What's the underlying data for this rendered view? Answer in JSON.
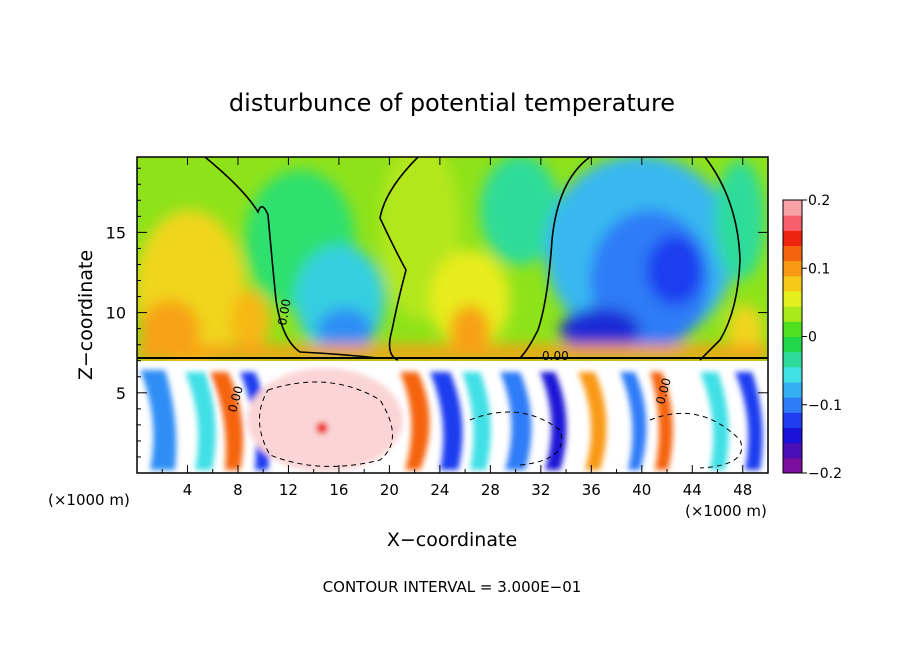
{
  "chart_data": {
    "type": "heatmap",
    "title": "disturbunce of potential temperature",
    "xlabel": "X−coordinate",
    "ylabel": "Z−coordinate",
    "x_unit_left": "(×1000 m)",
    "x_unit_right": "(×1000 m)",
    "x_ticks": [
      "4",
      "8",
      "12",
      "16",
      "20",
      "24",
      "28",
      "32",
      "36",
      "40",
      "44",
      "48"
    ],
    "x_tick_values": [
      4,
      8,
      12,
      16,
      20,
      24,
      28,
      32,
      36,
      40,
      44,
      48
    ],
    "y_ticks": [
      "5",
      "10",
      "15"
    ],
    "y_tick_values": [
      5,
      10,
      15
    ],
    "xlim": [
      0,
      50
    ],
    "ylim": [
      0,
      19.7
    ],
    "colorbar": {
      "ticks": [
        "0.2",
        "0.1",
        "0",
        "−0.1",
        "−0.2"
      ],
      "tick_values": [
        0.2,
        0.1,
        0,
        -0.1,
        -0.2
      ],
      "range": [
        -0.2,
        0.2
      ],
      "colors": [
        "#7b0e9c",
        "#4b0db5",
        "#1a12d6",
        "#1f3cf0",
        "#2f7cf7",
        "#35aef3",
        "#3fe0e6",
        "#2ddc9a",
        "#21d64a",
        "#4fe020",
        "#a8ea1c",
        "#e4ef1d",
        "#f8c818",
        "#f99a14",
        "#f5630f",
        "#ee2410",
        "#f7606a",
        "#f9a3a8"
      ]
    },
    "contour_labels": [
      "0.00",
      "0.00",
      "0.00",
      "0.00"
    ],
    "contour_interval_text": "CONTOUR INTERVAL = 3.000E−01",
    "grid": false
  }
}
